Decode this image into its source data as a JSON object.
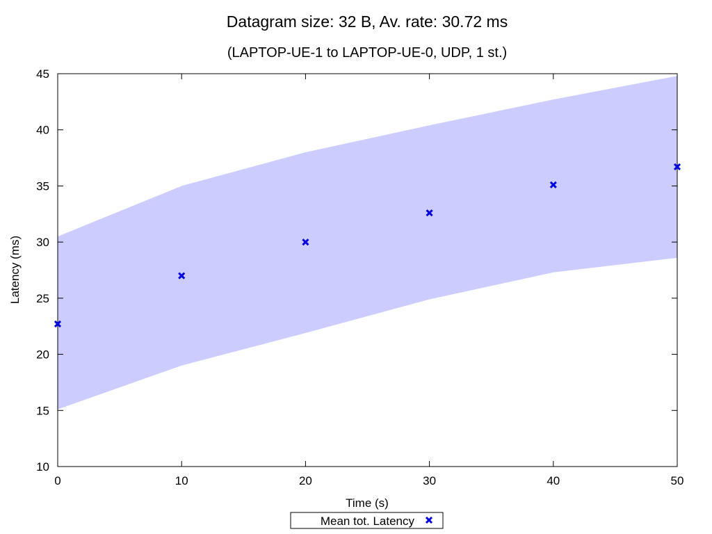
{
  "chart_data": {
    "type": "scatter",
    "title": "Datagram size: 32 B, Av. rate: 30.72 ms",
    "subtitle": "(LAPTOP-UE-1 to LAPTOP-UE-0, UDP, 1 st.)",
    "xlabel": "Time (s)",
    "ylabel": "Latency (ms)",
    "xlim": [
      0,
      50
    ],
    "ylim": [
      10,
      45
    ],
    "x_ticks": [
      "0",
      "10",
      "20",
      "30",
      "40",
      "50"
    ],
    "y_ticks": [
      "10",
      "15",
      "20",
      "25",
      "30",
      "35",
      "40",
      "45"
    ],
    "grid": false,
    "legend_position": "bottom-center",
    "series": [
      {
        "name": "Mean tot. Latency",
        "marker": "x",
        "color": "#0000e0",
        "x": [
          0,
          10,
          20,
          30,
          40,
          50
        ],
        "y": [
          22.7,
          27.0,
          30.0,
          32.6,
          35.1,
          36.7
        ]
      }
    ],
    "band": {
      "color": "#ccccff",
      "x": [
        0,
        10,
        20,
        30,
        40,
        50
      ],
      "upper": [
        30.5,
        35.0,
        38.0,
        40.4,
        42.7,
        44.8
      ],
      "lower": [
        15.1,
        19.0,
        21.9,
        24.9,
        27.3,
        28.6
      ]
    }
  }
}
